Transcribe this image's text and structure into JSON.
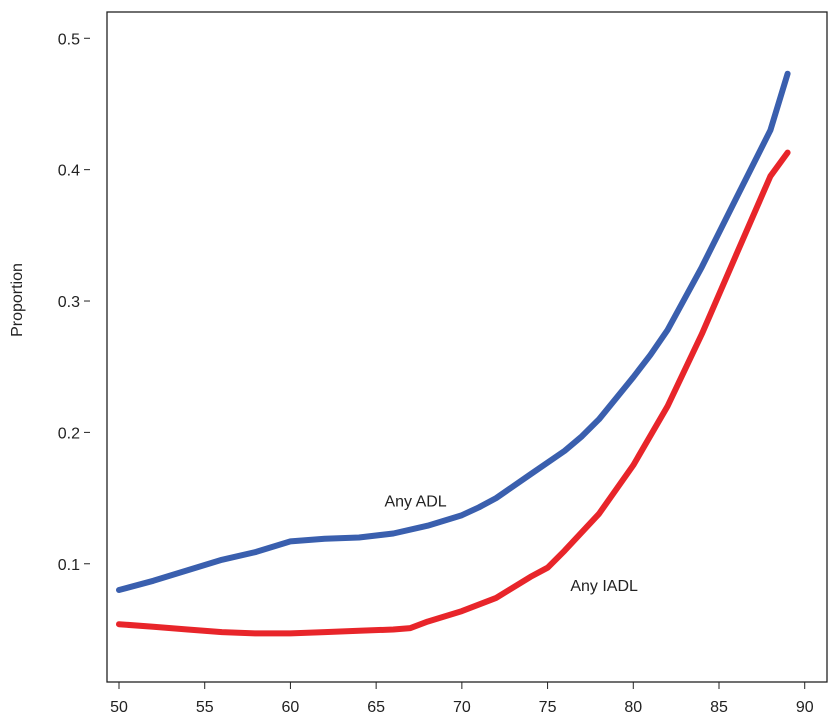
{
  "chart_data": {
    "type": "line",
    "title": "",
    "xlabel": "",
    "ylabel": "Proportion",
    "xlim": [
      49.3,
      91.3
    ],
    "ylim": [
      0.01,
      0.52
    ],
    "x_ticks": [
      50,
      55,
      60,
      65,
      70,
      75,
      80,
      85,
      90
    ],
    "y_ticks": [
      0.1,
      0.2,
      0.3,
      0.4,
      0.5
    ],
    "grid": false,
    "legend": "none",
    "series": [
      {
        "name": "Any ADL",
        "color": "#3a5fae",
        "x": [
          50,
          52,
          54,
          56,
          58,
          60,
          62,
          64,
          66,
          68,
          70,
          71,
          72,
          74,
          76,
          77,
          78,
          80,
          81,
          82,
          84,
          86,
          88,
          89
        ],
        "y": [
          0.08,
          0.087,
          0.095,
          0.103,
          0.109,
          0.117,
          0.119,
          0.12,
          0.123,
          0.129,
          0.137,
          0.143,
          0.15,
          0.168,
          0.186,
          0.197,
          0.21,
          0.242,
          0.259,
          0.278,
          0.326,
          0.378,
          0.43,
          0.473
        ]
      },
      {
        "name": "Any IADL",
        "color": "#e8252a",
        "x": [
          50,
          52,
          54,
          56,
          58,
          60,
          62,
          64,
          66,
          67,
          68,
          70,
          72,
          74,
          75,
          76,
          78,
          80,
          82,
          84,
          86,
          88,
          89
        ],
        "y": [
          0.054,
          0.052,
          0.05,
          0.048,
          0.047,
          0.047,
          0.048,
          0.049,
          0.05,
          0.051,
          0.056,
          0.064,
          0.074,
          0.09,
          0.097,
          0.11,
          0.138,
          0.175,
          0.22,
          0.275,
          0.335,
          0.395,
          0.413
        ]
      }
    ],
    "annotations": [
      {
        "text": "Any ADL",
        "x": 67.3,
        "y": 0.148
      },
      {
        "text": "Any IADL",
        "x": 78.3,
        "y": 0.084
      }
    ]
  }
}
